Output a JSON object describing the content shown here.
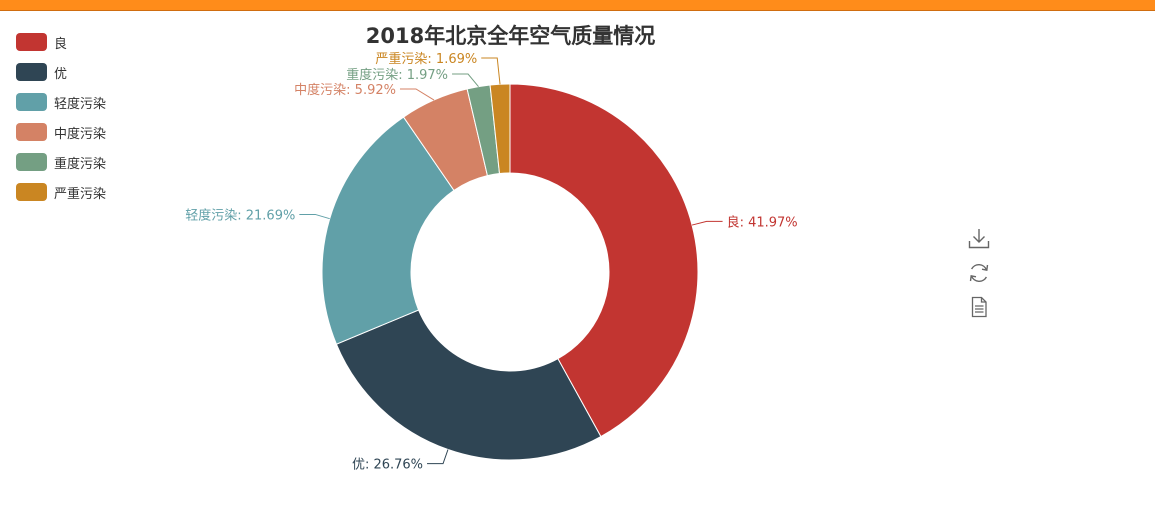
{
  "chart_data": {
    "type": "pie",
    "variant": "donut",
    "title": "2018年北京全年空气质量情况",
    "slices": [
      {
        "name": "良",
        "percent": 41.97,
        "label": "良: 41.97%",
        "color": "#c23531"
      },
      {
        "name": "优",
        "percent": 26.76,
        "label": "优: 26.76%",
        "color": "#2f4554"
      },
      {
        "name": "轻度污染",
        "percent": 21.69,
        "label": "轻度污染: 21.69%",
        "color": "#61a0a8"
      },
      {
        "name": "中度污染",
        "percent": 5.92,
        "label": "中度污染: 5.92%",
        "color": "#d48265"
      },
      {
        "name": "重度污染",
        "percent": 1.97,
        "label": "重度污染: 1.97%",
        "color": "#749f83"
      },
      {
        "name": "严重污染",
        "percent": 1.69,
        "label": "严重污染: 1.69%",
        "color": "#ca8622"
      }
    ],
    "legend_position": "top-left"
  },
  "colors": {
    "top_bar": "#ff8c1a",
    "toolbox_icon": "#666666"
  },
  "toolbox": [
    {
      "icon": "download-icon"
    },
    {
      "icon": "refresh-icon"
    },
    {
      "icon": "data-view-icon"
    }
  ]
}
